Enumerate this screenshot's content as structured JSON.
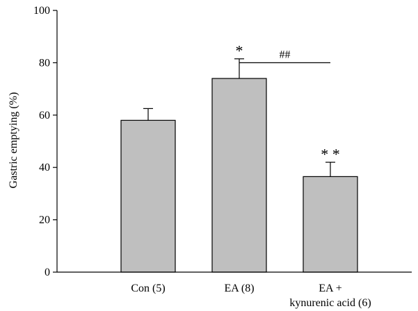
{
  "chart_data": {
    "type": "bar",
    "categories": [
      [
        "Con (5)"
      ],
      [
        "EA (8)"
      ],
      [
        "EA +",
        "kynurenic acid (6)"
      ]
    ],
    "values": [
      58,
      74,
      36.5
    ],
    "errors": [
      4.5,
      7.5,
      5.5
    ],
    "annotations": [
      "",
      "*",
      "**"
    ],
    "bracket": {
      "from": 1,
      "to": 2,
      "label": "##",
      "y": 80
    },
    "ylabel": "Gastric emptying (%)",
    "ylim": [
      0,
      100
    ],
    "yticks": [
      0,
      20,
      40,
      60,
      80,
      100
    ],
    "bar_color": "#bfbfbf",
    "grid": false
  }
}
